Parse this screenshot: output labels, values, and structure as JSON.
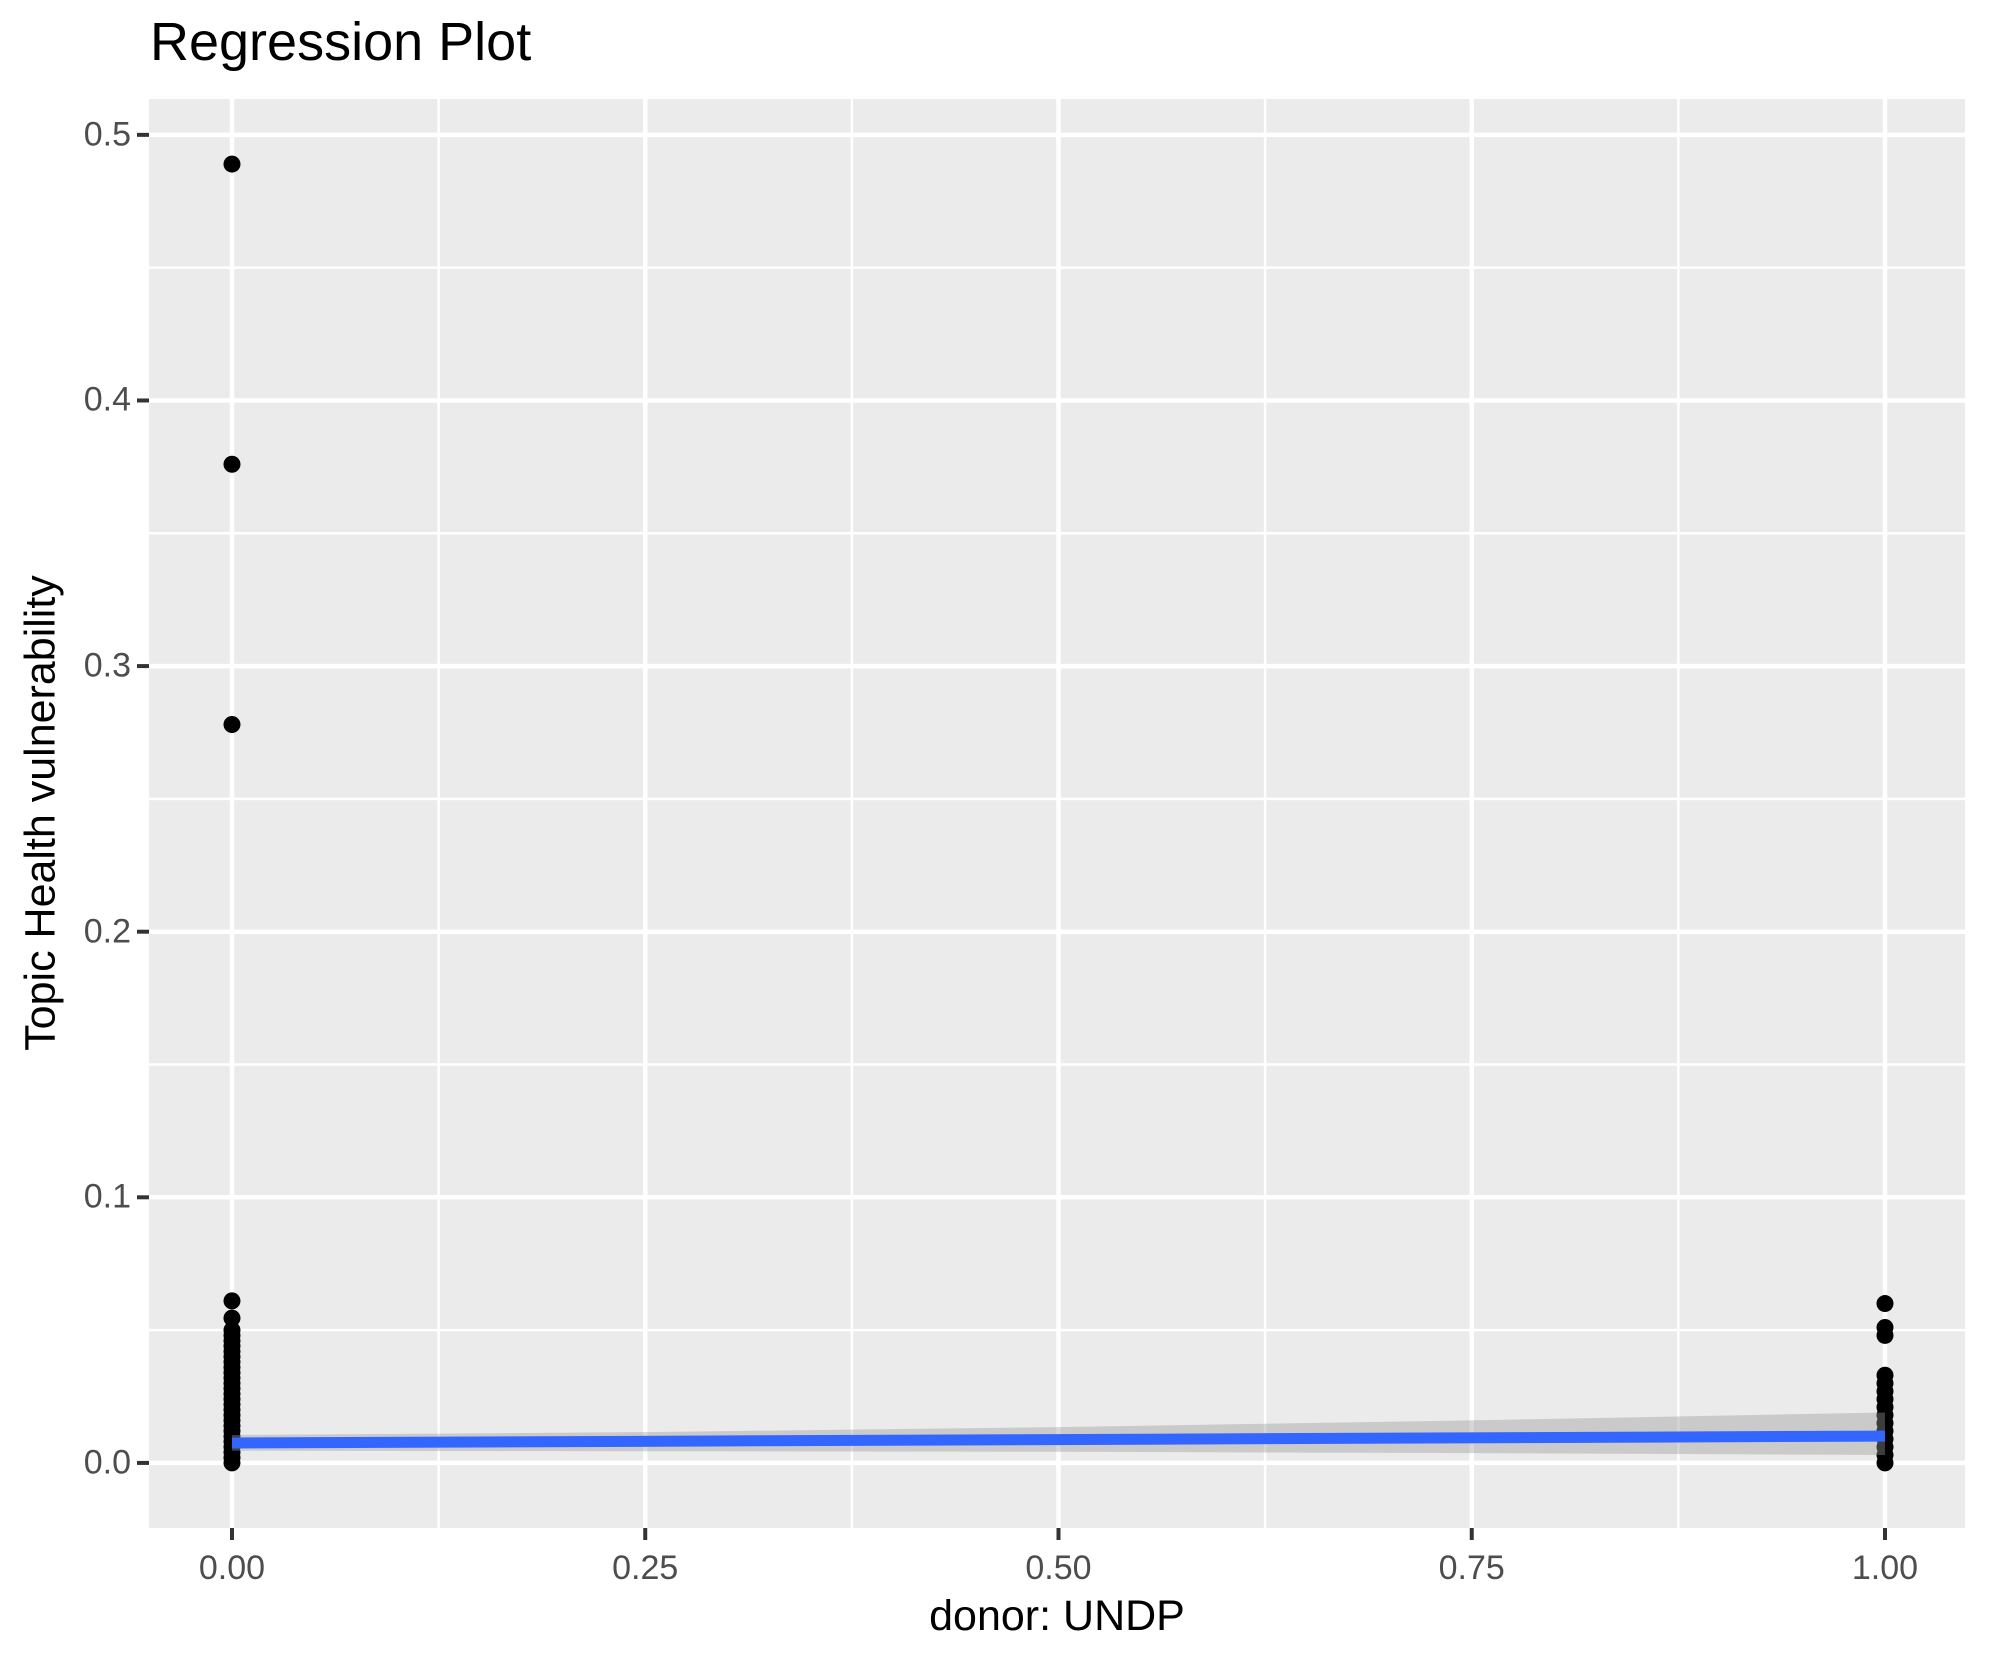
{
  "chart_data": {
    "type": "scatter",
    "title": "Regression Plot",
    "xlabel": "donor: UNDP",
    "ylabel": "Topic Health vulnerability",
    "grid": "on",
    "legend_position": "none",
    "xlim": [
      -0.0502,
      1.0484
    ],
    "ylim": [
      -0.0245,
      0.5135
    ],
    "x_axis": {
      "tick_values": [
        0,
        0.25,
        0.5,
        0.75,
        1.0
      ],
      "tick_labels": [
        "0.00",
        "0.25",
        "0.50",
        "0.75",
        "1.00"
      ],
      "minor_breaks": [
        0.125,
        0.375,
        0.625,
        0.875
      ]
    },
    "y_axis": {
      "tick_values": [
        0,
        0.1,
        0.2,
        0.3,
        0.4,
        0.5
      ],
      "tick_labels": [
        "0.0",
        "0.1",
        "0.2",
        "0.3",
        "0.4",
        "0.5"
      ],
      "minor_breaks": [
        0.05,
        0.15,
        0.25,
        0.35,
        0.45
      ]
    },
    "series": [
      {
        "name": "donor = 0",
        "x": 0,
        "y": [
          0.489,
          0.376,
          0.278,
          0.061,
          0.0545,
          0.05,
          0.048,
          0.046,
          0.044,
          0.042,
          0.04,
          0.038,
          0.036,
          0.034,
          0.032,
          0.03,
          0.028,
          0.026,
          0.024,
          0.022,
          0.02,
          0.018,
          0.016,
          0.014,
          0.012,
          0.01,
          0.008,
          0.006,
          0.004,
          0.002,
          0.0
        ]
      },
      {
        "name": "donor = 1",
        "x": 1,
        "y": [
          0.06,
          0.051,
          0.048,
          0.033,
          0.03,
          0.027,
          0.024,
          0.021,
          0.018,
          0.015,
          0.012,
          0.009,
          0.006,
          0.003,
          0.0
        ]
      }
    ],
    "regression_line": {
      "x": [
        0,
        1
      ],
      "y": [
        0.0075,
        0.0101
      ]
    },
    "confidence_band": {
      "x": [
        0,
        0.25,
        0.5,
        0.75,
        1.0
      ],
      "upper": [
        0.0105,
        0.0116,
        0.0135,
        0.016,
        0.019
      ],
      "lower": [
        0.0046,
        0.0044,
        0.0042,
        0.0037,
        0.003
      ]
    },
    "colors": {
      "panel_background": "#EBEBEB",
      "gridline": "#FFFFFF",
      "point": "#000000",
      "regression_line": "#3366FF",
      "confidence_band": "#999999",
      "confidence_band_opacity": 0.4,
      "tick_mark": "#333333",
      "tick_label": "#4D4D4D",
      "title_text": "#000000"
    }
  }
}
